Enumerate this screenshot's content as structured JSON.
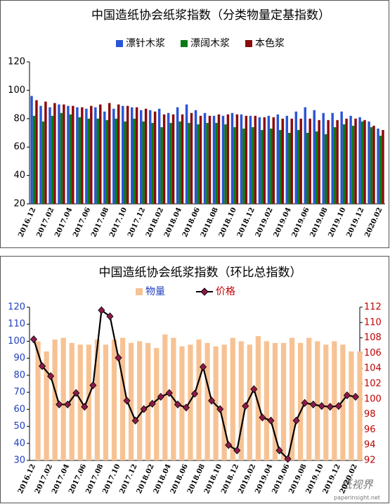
{
  "chart_data": [
    {
      "type": "bar",
      "title": "中国造纸协会纸浆指数（分类物量定基指数）",
      "categories": [
        "2016.12",
        null,
        "2017.02",
        null,
        "2017.04",
        null,
        "2017.06",
        null,
        "2017.08",
        null,
        "2017.10",
        null,
        "2017.12",
        null,
        "2018.02",
        null,
        "2018.04",
        null,
        "2018.06",
        null,
        "2018.08",
        null,
        "2018.10",
        null,
        "2018.12",
        null,
        "2019.02",
        null,
        "2019.04",
        null,
        "2019.06",
        null,
        "2019.08",
        null,
        "2019.10",
        null,
        "2019.12",
        null,
        "2020.02"
      ],
      "series": [
        {
          "name": "漂针木浆",
          "color": "#2a55d4",
          "values": [
            96,
            89,
            88,
            90,
            89,
            88,
            87,
            88,
            85,
            87,
            89,
            88,
            86,
            86,
            87,
            84,
            88,
            90,
            86,
            84,
            82,
            82,
            84,
            83,
            82,
            81,
            82,
            83,
            82,
            85,
            88,
            86,
            84,
            84,
            85,
            82,
            81,
            78,
            73
          ]
        },
        {
          "name": "漂阔木浆",
          "color": "#0b7a16",
          "values": [
            82,
            78,
            82,
            84,
            83,
            81,
            80,
            80,
            79,
            80,
            78,
            80,
            78,
            77,
            74,
            77,
            78,
            77,
            76,
            77,
            77,
            76,
            74,
            73,
            74,
            72,
            73,
            72,
            70,
            72,
            70,
            71,
            69,
            74,
            76,
            75,
            78,
            74,
            68
          ]
        },
        {
          "name": "本色浆",
          "color": "#8b0a0a",
          "values": [
            93,
            92,
            91,
            90,
            89,
            88,
            89,
            90,
            91,
            90,
            89,
            88,
            87,
            85,
            83,
            83,
            83,
            84,
            82,
            82,
            83,
            83,
            83,
            82,
            82,
            81,
            81,
            80,
            80,
            80,
            80,
            79,
            79,
            79,
            80,
            80,
            79,
            75,
            72
          ]
        }
      ],
      "ylim": [
        20,
        120
      ],
      "yticks": [
        20,
        40,
        60,
        80,
        100,
        120
      ],
      "grid": false
    },
    {
      "type": "combo",
      "title": "中国造纸协会纸浆指数（环比总指数）",
      "categories": [
        "2016.12",
        null,
        "2017.02",
        null,
        "2017.04",
        null,
        "2017.06",
        null,
        "2017.08",
        null,
        "2017.10",
        null,
        "2017.12",
        null,
        "2018.02",
        null,
        "2018.04",
        null,
        "2018.06",
        null,
        "2018.08",
        null,
        "2018.10",
        null,
        "2018.12",
        null,
        "2019.02",
        null,
        "2019.04",
        null,
        "2019.06",
        null,
        "2019.08",
        null,
        "2019.10",
        null,
        "2019.12",
        null,
        "2020.02"
      ],
      "series": [
        {
          "name": "物量",
          "type": "bar",
          "color": "#f7c293",
          "values": [
            100,
            94,
            101,
            102,
            99,
            98,
            98,
            101,
            98,
            101,
            102,
            99,
            100,
            99,
            96,
            104,
            102,
            97,
            98,
            101,
            99,
            97,
            98,
            102,
            100,
            98,
            103,
            100,
            99,
            99,
            102,
            99,
            102,
            100,
            98,
            100,
            98,
            94,
            94
          ]
        },
        {
          "name": "价格",
          "type": "line",
          "axis": "y2",
          "color": "#000000",
          "marker_color": "#8b1a4a",
          "values": [
            107.8,
            104.3,
            103,
            99.3,
            99.3,
            100.8,
            99,
            101.8,
            111.6,
            110.8,
            105.4,
            99.8,
            97.2,
            98.7,
            99.4,
            100.3,
            100.8,
            99.3,
            98.9,
            100.7,
            104.2,
            99.8,
            98.7,
            94,
            93.3,
            99.1,
            101.3,
            97.6,
            97.2,
            93.3,
            92.2,
            97.2,
            99.5,
            99.3,
            99.1,
            99,
            99.1,
            100.5,
            100.3
          ]
        }
      ],
      "ylim": [
        30,
        120
      ],
      "yticks": [
        30,
        40,
        50,
        60,
        70,
        80,
        90,
        100,
        110,
        120
      ],
      "y2lim": [
        92,
        112
      ],
      "y2ticks": [
        92,
        94,
        96,
        98,
        100,
        102,
        104,
        106,
        108,
        110,
        112
      ],
      "grid": false,
      "watermark": "纸视界",
      "watermark_url": "paperinsight.net"
    }
  ]
}
